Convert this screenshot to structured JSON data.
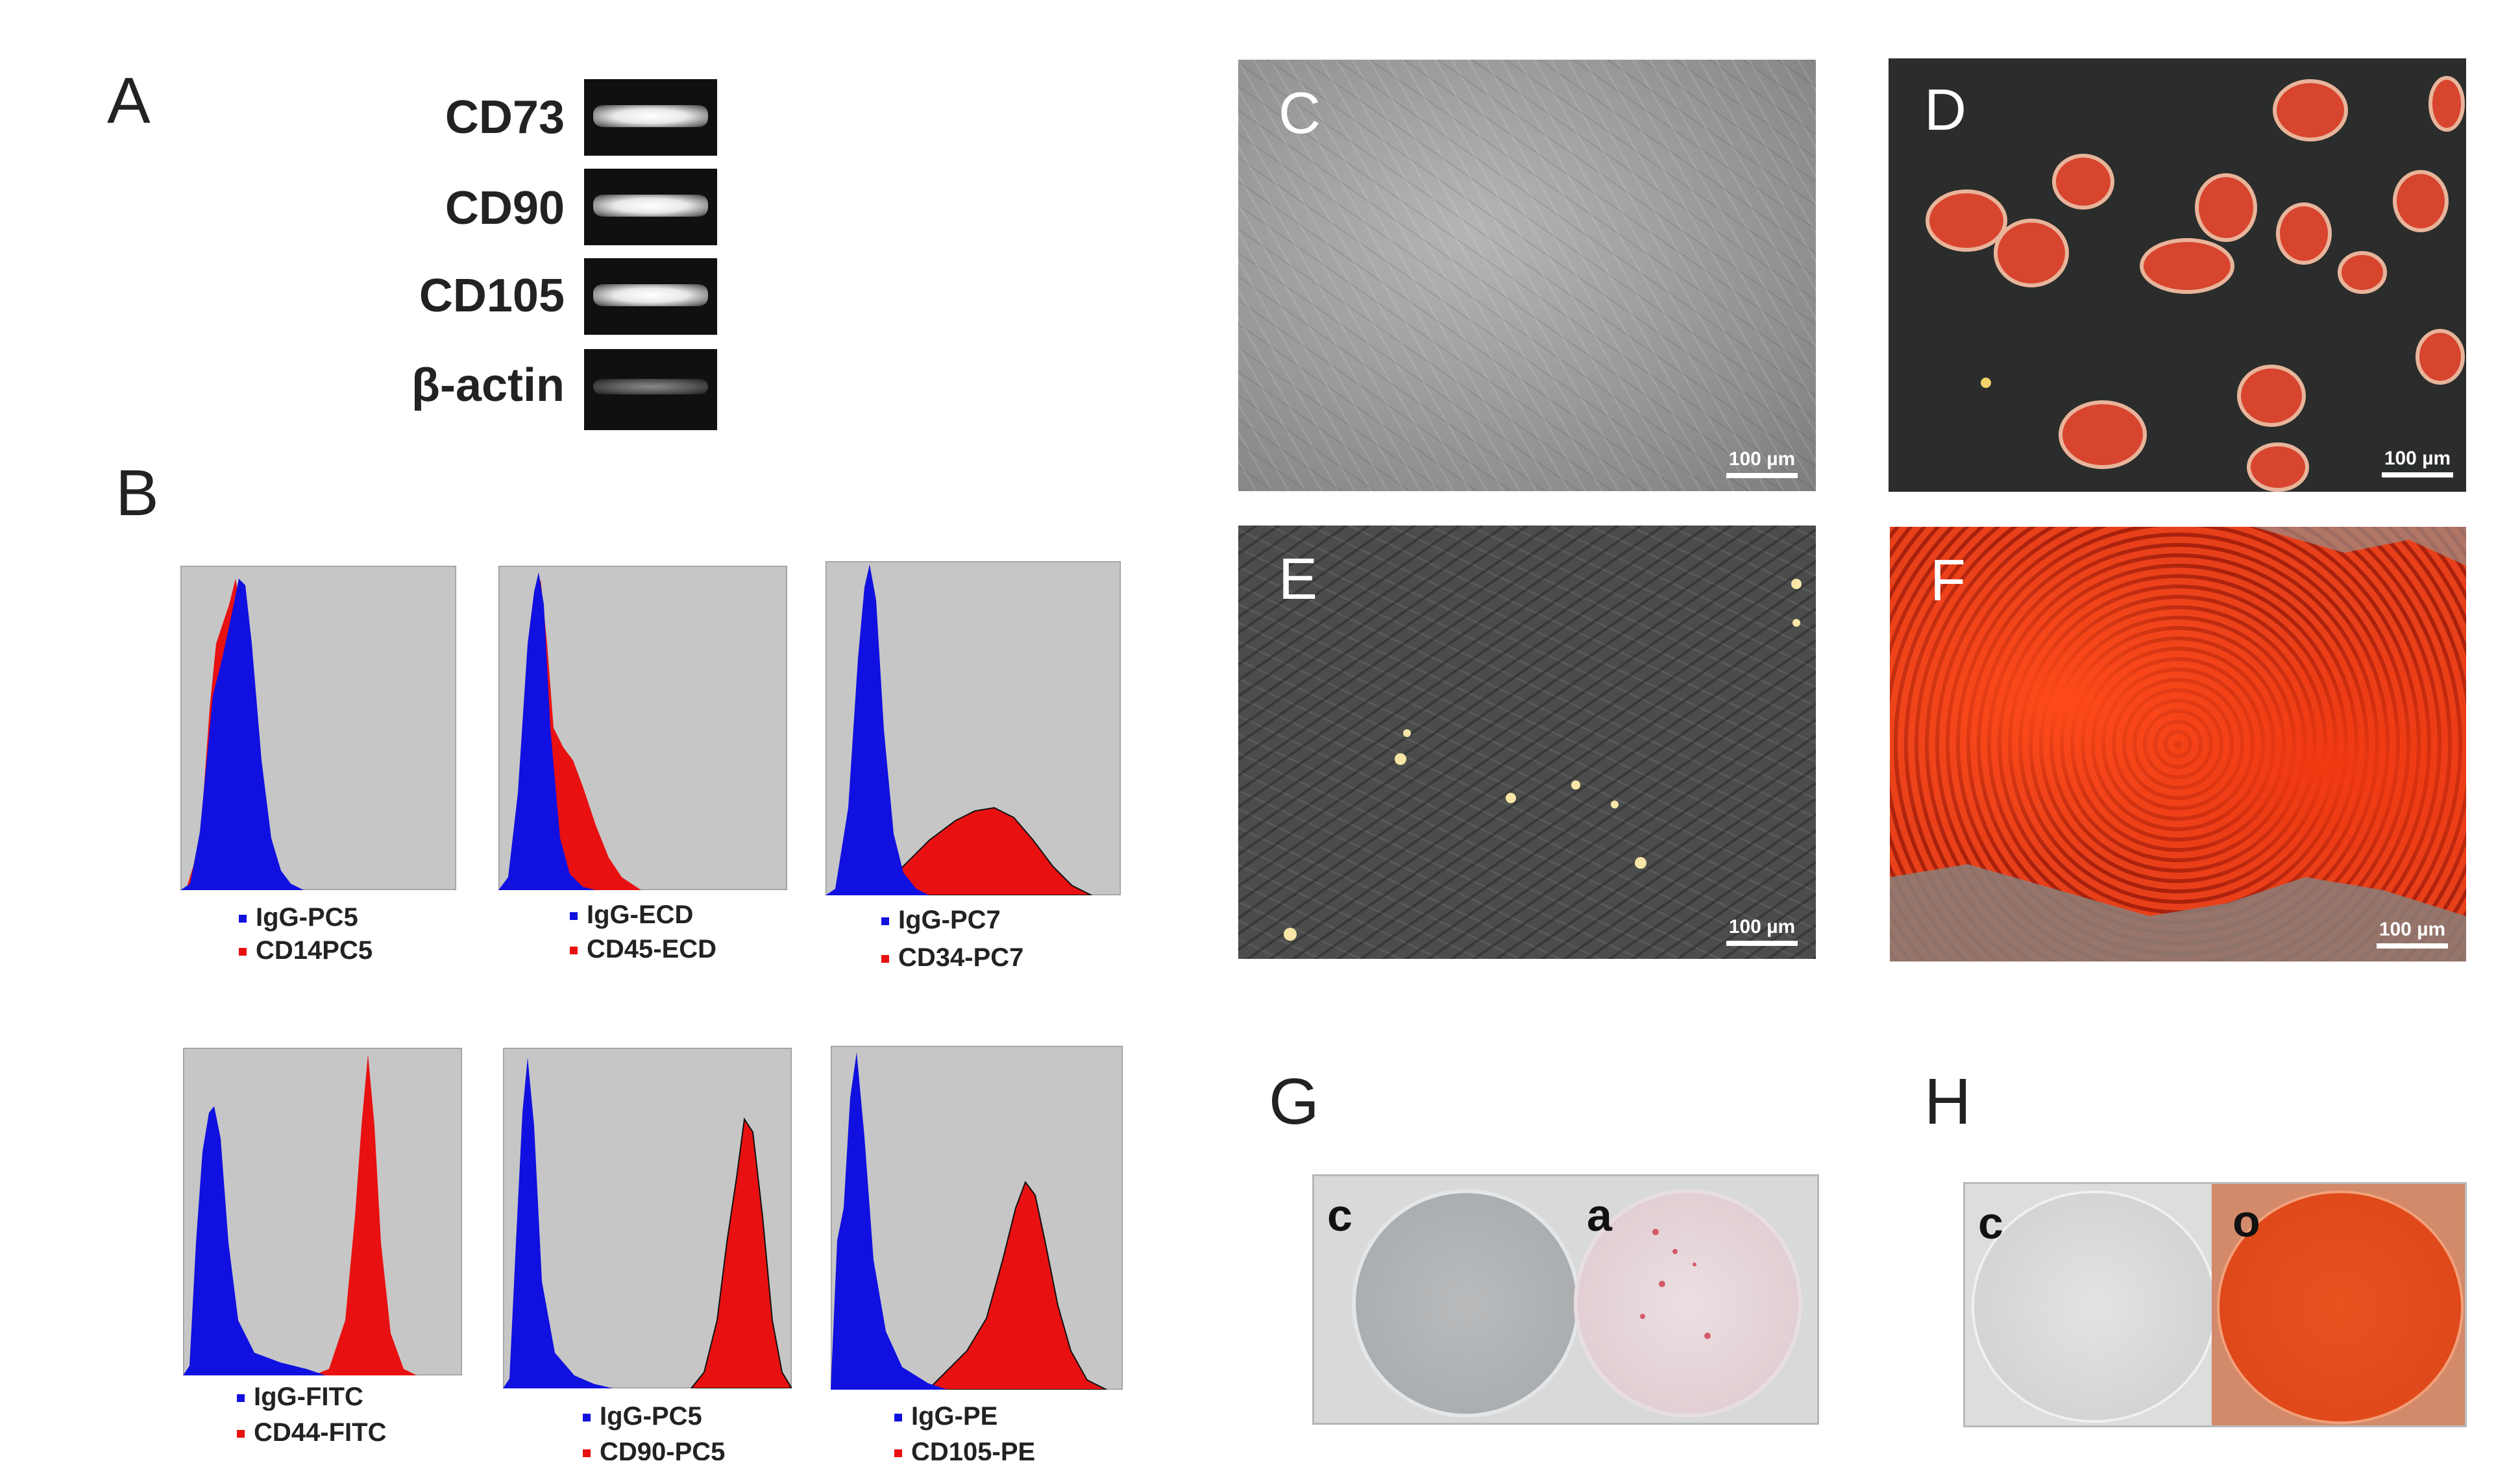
{
  "panels": {
    "A": "A",
    "B": "B",
    "C": "C",
    "D": "D",
    "E": "E",
    "F": "F",
    "G": "G",
    "H": "H"
  },
  "gel": {
    "markers": [
      "CD73",
      "CD90",
      "CD105",
      "β-actin"
    ]
  },
  "flow": {
    "histograms": [
      {
        "control": "IgG-PC5",
        "marker": "CD14PC5"
      },
      {
        "control": "IgG-ECD",
        "marker": "CD45-ECD"
      },
      {
        "control": "IgG-PC7",
        "marker": "CD34-PC7"
      },
      {
        "control": "IgG-FITC",
        "marker": "CD44-FITC"
      },
      {
        "control": "IgG-PC5",
        "marker": "CD90-PC5"
      },
      {
        "control": "IgG-PE",
        "marker": "CD105-PE"
      }
    ],
    "colors": {
      "control": "#1010e0",
      "marker": "#e81010",
      "background": "#c6c6c6"
    }
  },
  "micrographs": {
    "scale_label": "100 µm"
  },
  "plates": {
    "G": {
      "left": "c",
      "right": "a"
    },
    "H": {
      "left": "c",
      "right": "o"
    }
  }
}
